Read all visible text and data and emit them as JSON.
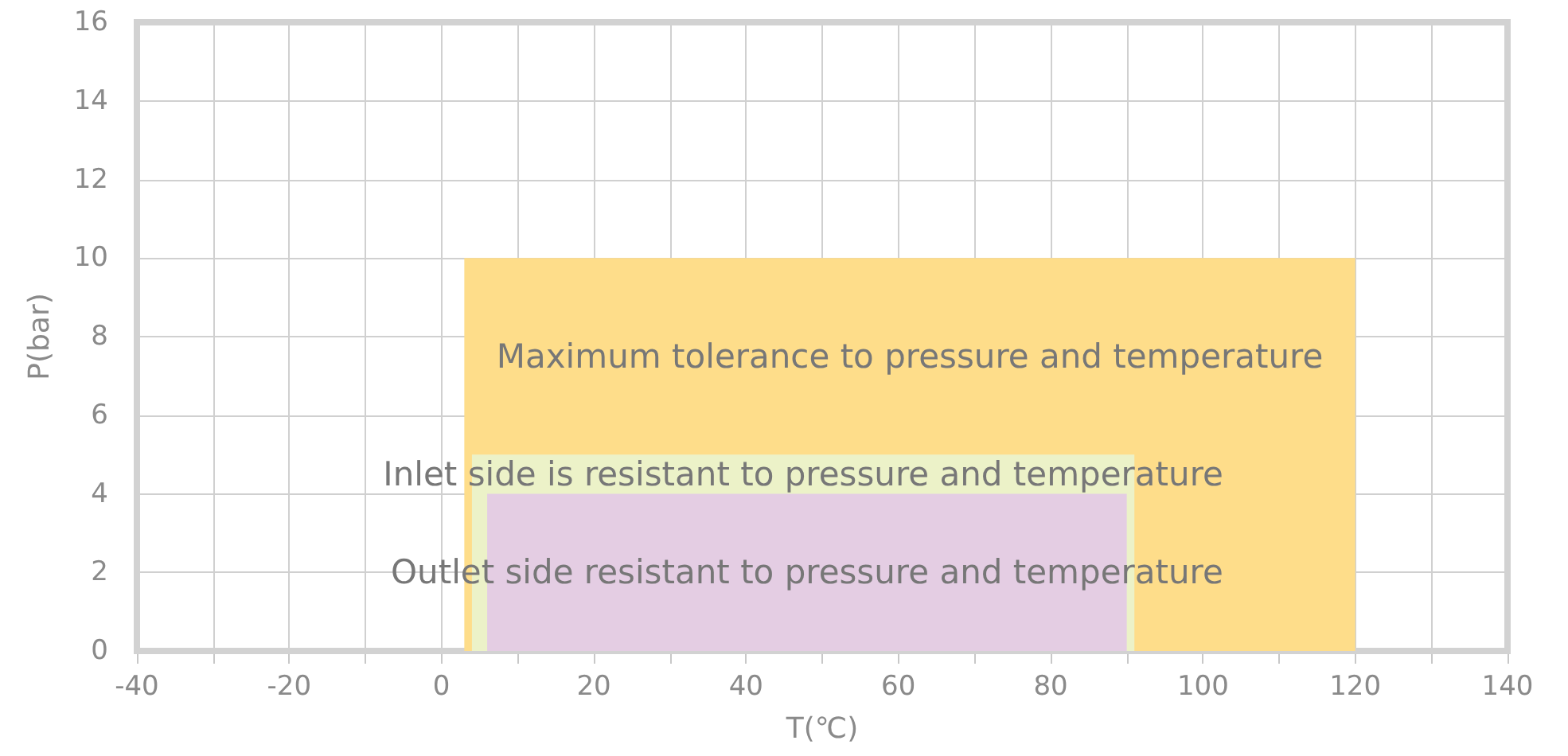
{
  "chart_data": {
    "type": "area",
    "xlabel": "T(℃)",
    "ylabel": "P(bar)",
    "series": [
      {
        "name": "Maximum tolerance to pressure and temperature",
        "color": "#fedd8a",
        "x": [
          3,
          120
        ],
        "values": [
          10,
          10
        ]
      },
      {
        "name": "Inlet side is resistant to pressure and temperature",
        "color": "#ecf2c8",
        "x": [
          4,
          91
        ],
        "values": [
          5,
          5
        ]
      },
      {
        "name": "Outlet side resistant to pressure and temperature",
        "color": "#e4cde3",
        "x": [
          6,
          90
        ],
        "values": [
          4,
          4
        ]
      }
    ],
    "xlim": [
      -40,
      140
    ],
    "xticks": [
      -40,
      {
        "value": -30,
        "label": null
      },
      -20,
      {
        "value": -10,
        "label": null
      },
      0,
      {
        "value": 10,
        "label": null
      },
      20,
      {
        "value": 30,
        "label": null
      },
      40,
      {
        "value": 50,
        "label": null
      },
      60,
      {
        "value": 70,
        "label": null
      },
      80,
      {
        "value": 90,
        "label": null
      },
      100,
      {
        "value": 110,
        "label": null
      },
      120,
      {
        "value": 130,
        "label": null
      },
      140
    ],
    "ylim": [
      0,
      16
    ],
    "yticks": [
      0,
      2,
      4,
      6,
      8,
      10,
      12,
      14,
      16
    ],
    "grid": true,
    "legend": false
  }
}
